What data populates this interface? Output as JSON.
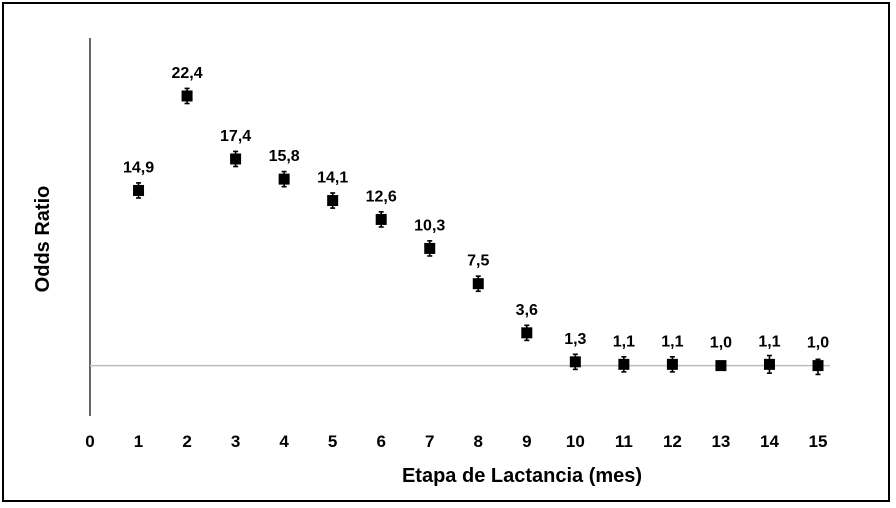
{
  "chart_data": {
    "type": "scatter",
    "xlabel": "Etapa de Lactancia (mes)",
    "ylabel": "Odds Ratio",
    "xlim": [
      0,
      15
    ],
    "ylim": [
      -3,
      27
    ],
    "x_ticks": [
      "0",
      "1",
      "2",
      "3",
      "4",
      "5",
      "6",
      "7",
      "8",
      "9",
      "10",
      "11",
      "12",
      "13",
      "14",
      "15"
    ],
    "reference_line_y": 1.0,
    "grid": false,
    "series": [
      {
        "marker": "square",
        "color": "#000000",
        "points": [
          {
            "x": 1,
            "y": 14.9,
            "label": "14,9",
            "err_low": 14.3,
            "err_high": 15.5
          },
          {
            "x": 2,
            "y": 22.4,
            "label": "22,4",
            "err_low": 21.8,
            "err_high": 23.0
          },
          {
            "x": 3,
            "y": 17.4,
            "label": "17,4",
            "err_low": 16.8,
            "err_high": 18.0
          },
          {
            "x": 4,
            "y": 15.8,
            "label": "15,8",
            "err_low": 15.2,
            "err_high": 16.4
          },
          {
            "x": 5,
            "y": 14.1,
            "label": "14,1",
            "err_low": 13.5,
            "err_high": 14.7
          },
          {
            "x": 6,
            "y": 12.6,
            "label": "12,6",
            "err_low": 12.0,
            "err_high": 13.2
          },
          {
            "x": 7,
            "y": 10.3,
            "label": "10,3",
            "err_low": 9.7,
            "err_high": 10.9
          },
          {
            "x": 8,
            "y": 7.5,
            "label": "7,5",
            "err_low": 6.9,
            "err_high": 8.1
          },
          {
            "x": 9,
            "y": 3.6,
            "label": "3,6",
            "err_low": 3.0,
            "err_high": 4.2
          },
          {
            "x": 10,
            "y": 1.3,
            "label": "1,3",
            "err_low": 0.7,
            "err_high": 1.9
          },
          {
            "x": 11,
            "y": 1.1,
            "label": "1,1",
            "err_low": 0.5,
            "err_high": 1.7
          },
          {
            "x": 12,
            "y": 1.1,
            "label": "1,1",
            "err_low": 0.5,
            "err_high": 1.7
          },
          {
            "x": 13,
            "y": 1.0,
            "label": "1,0",
            "err_low": 1.0,
            "err_high": 1.0
          },
          {
            "x": 14,
            "y": 1.1,
            "label": "1,1",
            "err_low": 0.4,
            "err_high": 1.8
          },
          {
            "x": 15,
            "y": 1.0,
            "label": "1,0",
            "err_low": 0.3,
            "err_high": 1.5
          }
        ]
      }
    ]
  }
}
